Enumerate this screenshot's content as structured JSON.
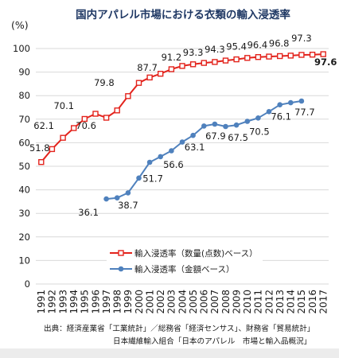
{
  "chart_data": {
    "type": "line",
    "title": "国内アパレル市場における衣類の輸入浸透率",
    "ylabel": "(%)",
    "ylim": [
      0,
      100
    ],
    "yticks": [
      0,
      10,
      20,
      30,
      40,
      50,
      60,
      70,
      80,
      90,
      100
    ],
    "grid": true,
    "legend_position": "inside-bottom-center",
    "x": [
      "1991",
      "1992",
      "1993",
      "1994",
      "1995",
      "1996",
      "1997",
      "1998",
      "1999",
      "2000",
      "2001",
      "2002",
      "2003",
      "2004",
      "2005",
      "2006",
      "2007",
      "2008",
      "2009",
      "2010",
      "2011",
      "2012",
      "2013",
      "2014",
      "2015",
      "2016",
      "2017"
    ],
    "series": [
      {
        "name": "輸入浸透率（数量(点数)ベース）",
        "color": "#e3231c",
        "marker": "square",
        "values": [
          51.8,
          57.3,
          62.1,
          66.2,
          70.1,
          72.3,
          70.6,
          73.7,
          79.8,
          85.4,
          87.7,
          89.3,
          91.2,
          92.6,
          93.3,
          93.9,
          94.3,
          94.9,
          95.4,
          96.0,
          96.4,
          96.6,
          96.8,
          97.0,
          97.3,
          97.4,
          97.6
        ]
      },
      {
        "name": "輸入浸透率（金額ベース）",
        "color": "#4f81bd",
        "marker": "circle",
        "values": [
          null,
          null,
          null,
          null,
          null,
          null,
          36.1,
          36.6,
          38.7,
          45.0,
          51.7,
          54.1,
          56.6,
          60.3,
          63.1,
          67.1,
          67.9,
          66.9,
          67.5,
          69.1,
          70.5,
          73.2,
          76.1,
          77.0,
          77.7,
          null,
          null
        ]
      }
    ]
  },
  "source": [
    "出典：経済産業省「工業統計」／総務省「経済センサス」、財務省「貿易統計」",
    "日本繊維輸入組合「日本のアパレル　市場と輸入品概況」"
  ]
}
